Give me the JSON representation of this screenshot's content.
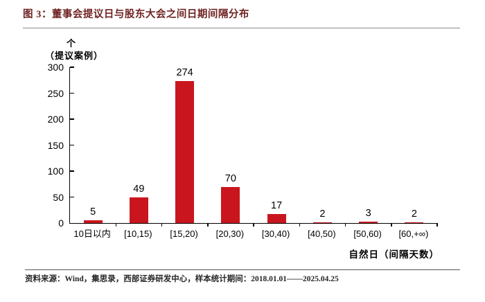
{
  "figure": {
    "title": "图 3：董事会提议日与股东大会之间日期间隔分布",
    "source_note": "资料来源：Wind，集思录，西部证券研发中心，样本统计期间：2018.01.01——2025.04.25",
    "title_color": "#6e2322"
  },
  "chart_data": {
    "type": "bar",
    "title": "董事会提议日与股东大会之间日期间隔分布",
    "categories": [
      "10日以内",
      "[10,15)",
      "[15,20)",
      "[20,30)",
      "[30,40)",
      "[40,50)",
      "[50,60)",
      "[60,+∞)"
    ],
    "values": [
      5,
      49,
      274,
      70,
      17,
      2,
      3,
      2
    ],
    "ylabel_unit": "个",
    "ylabel": "（提议案例）",
    "xlabel": "自然日（间隔天数）",
    "ylim": [
      0,
      300
    ],
    "yticks": [
      0,
      50,
      100,
      150,
      200,
      250,
      300
    ],
    "bar_color": "#c9161e",
    "grid": false,
    "legend": "none",
    "data_labels": true
  }
}
